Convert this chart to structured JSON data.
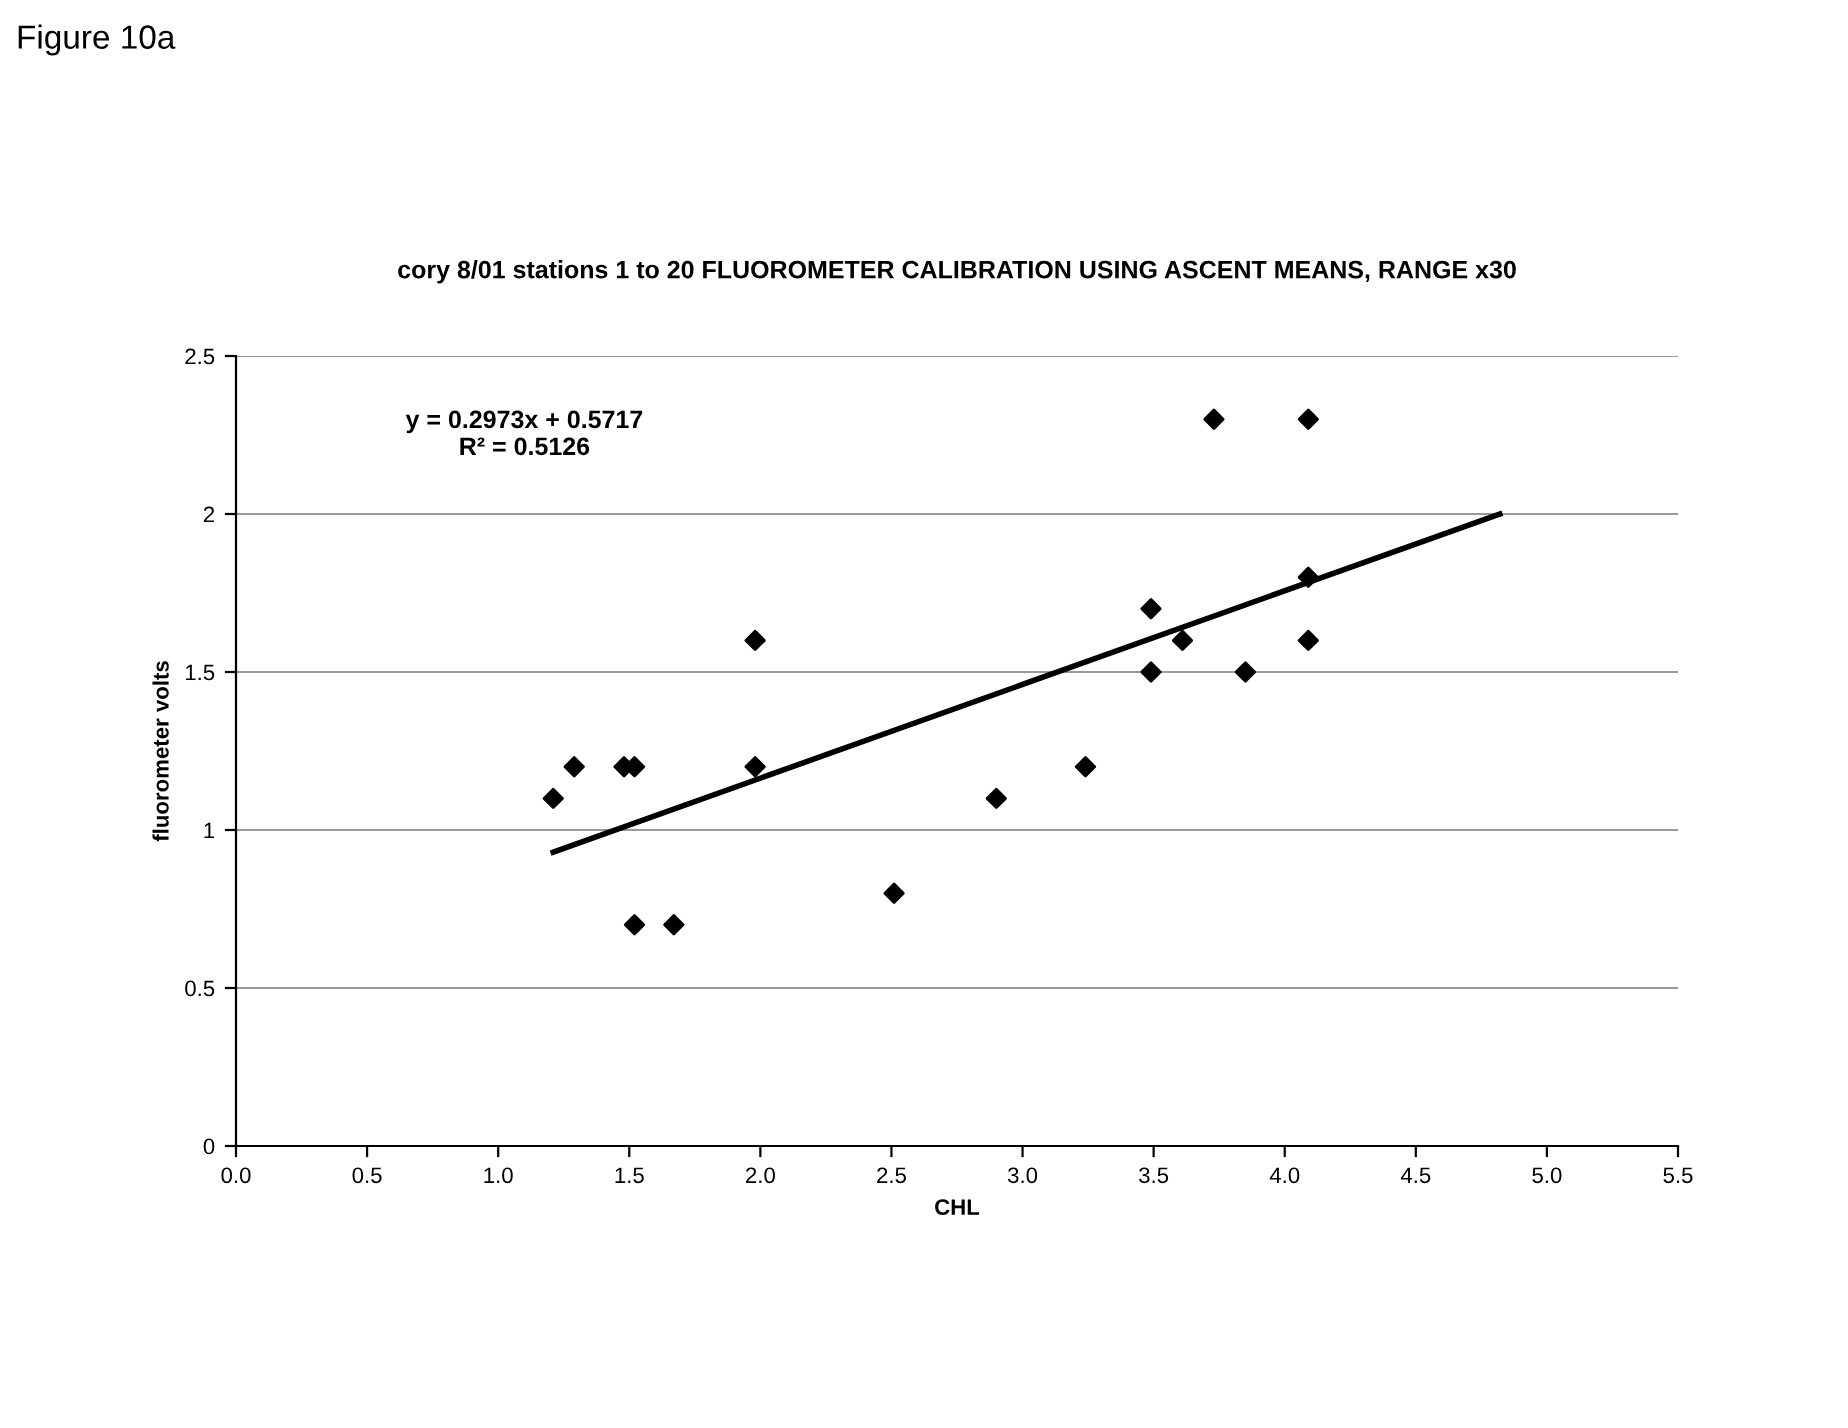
{
  "chart_data": {
    "type": "scatter",
    "title": "cory 8/01 stations 1 to 20 FLUOROMETER CALIBRATION USING ASCENT MEANS, RANGE x30",
    "xlabel": "CHL",
    "ylabel": "fluorometer volts",
    "annotations": [
      "Figure 10a",
      "y = 0.2973x + 0.5717\nR² = 0.5126"
    ],
    "series": [
      {
        "color": "#000000",
        "marker": "diamond",
        "x": [
          1.21,
          1.29,
          1.48,
          1.52,
          1.52,
          1.67,
          1.98,
          1.98,
          2.51,
          2.9,
          3.24,
          3.49,
          3.49,
          3.61,
          3.73,
          3.85,
          4.09,
          4.09,
          4.09
        ],
        "values": [
          1.1,
          1.2,
          1.2,
          1.2,
          0.7,
          0.7,
          1.6,
          1.2,
          0.8,
          1.1,
          1.2,
          1.7,
          1.5,
          1.6,
          2.3,
          1.5,
          2.3,
          1.8,
          1.6
        ]
      },
      {
        "type": "line",
        "color": "#000000",
        "marker": "none",
        "line_style": "solid",
        "x": [
          1.21,
          4.82
        ],
        "values": [
          0.93,
          2.0
        ]
      }
    ],
    "xlim": [
      0,
      5.5
    ],
    "xticks": [
      {
        "value": 0,
        "label": "0.0"
      },
      {
        "value": 0.5,
        "label": "0.5"
      },
      {
        "value": 1,
        "label": "1.0"
      },
      {
        "value": 1.5,
        "label": "1.5"
      },
      {
        "value": 2,
        "label": "2.0"
      },
      {
        "value": 2.5,
        "label": "2.5"
      },
      {
        "value": 3,
        "label": "3.0"
      },
      {
        "value": 3.5,
        "label": "3.5"
      },
      {
        "value": 4,
        "label": "4.0"
      },
      {
        "value": 4.5,
        "label": "4.5"
      },
      {
        "value": 5,
        "label": "5.0"
      },
      {
        "value": 5.5,
        "label": "5.5"
      }
    ],
    "ylim": [
      0,
      2.5
    ],
    "yticks": [
      0,
      0.5,
      1,
      1.5,
      2,
      2.5
    ],
    "grid": "y",
    "legend": false
  }
}
